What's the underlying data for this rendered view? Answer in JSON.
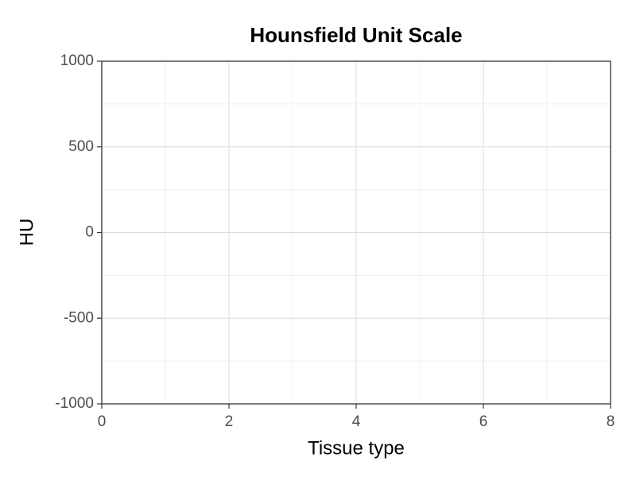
{
  "chart_data": {
    "type": "scatter",
    "title": "Hounsfield Unit Scale",
    "x_label": "Tissue type",
    "y_label": "HU",
    "xlim": [
      0,
      8
    ],
    "xticks": [
      0,
      2,
      4,
      6,
      8
    ],
    "x_minor": [
      1,
      3,
      5,
      7
    ],
    "ylim": [
      -1000,
      1000
    ],
    "yticks": [
      -1000,
      -500,
      0,
      500,
      1000
    ],
    "y_minor": [
      -750,
      -250,
      250,
      750
    ],
    "grid": true
  }
}
